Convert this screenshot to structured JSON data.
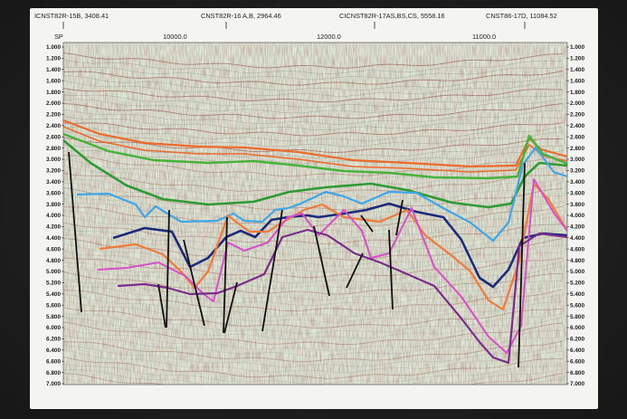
{
  "header": {
    "line_labels": [
      "ICNST82R-15B, 3408.41",
      "CNST82R-16 A,B, 2964.46",
      "CICNST82R-17AS,BS,CS, 5558.16",
      "CNST86-17D, 11084.52"
    ],
    "sp_label": "SP",
    "cdp_labels": [
      "10000.0",
      "12000.0",
      "11000.0"
    ]
  },
  "axes": {
    "left_ticks": [
      "1.000",
      "1.200",
      "1.400",
      "1.600",
      "1.800",
      "2.000",
      "2.200",
      "2.400",
      "2.600",
      "2.800",
      "3.000",
      "3.200",
      "3.400",
      "3.600",
      "3.800",
      "4.000",
      "4.200",
      "4.400",
      "4.600",
      "4.800",
      "5.000",
      "5.200",
      "5.400",
      "5.600",
      "5.800",
      "6.000",
      "6.200",
      "6.400",
      "6.600",
      "6.800",
      "7.000"
    ],
    "right_ticks": [
      "1.000",
      "1.200",
      "1.400",
      "1.600",
      "1.800",
      "2.000",
      "2.200",
      "2.400",
      "2.600",
      "2.800",
      "3.000",
      "3.200",
      "3.400",
      "3.600",
      "3.800",
      "4.000",
      "4.200",
      "4.400",
      "4.600",
      "4.800",
      "5.000",
      "5.200",
      "5.400",
      "5.600",
      "5.800",
      "6.000",
      "6.200",
      "6.400",
      "6.600",
      "6.800",
      "7.000"
    ],
    "time_range": [
      1.0,
      7.0
    ]
  },
  "horizon_colors": {
    "orange_upper": "#ec6a2b",
    "green_upper": "#46b23a",
    "green_lower": "#2e9a34",
    "blue_light": "#3fa6e8",
    "navy": "#1b2a7a",
    "orange_deep": "#f07a3a",
    "magenta": "#d650c8",
    "purple": "#7a2c8c",
    "fault": "#111111",
    "background": "#dfe9d9",
    "frame": "#f2f2ee"
  }
}
